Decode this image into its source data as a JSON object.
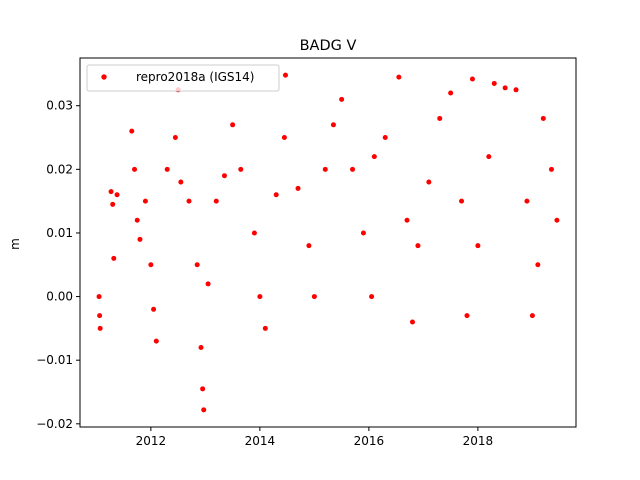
{
  "chart_data": {
    "type": "scatter",
    "title": "BADG V",
    "xlabel": "",
    "ylabel": "m",
    "xlim": [
      2010.7,
      2019.8
    ],
    "ylim": [
      -0.0205,
      0.0375
    ],
    "xticks": [
      2012,
      2014,
      2016,
      2018
    ],
    "xtick_labels": [
      "2012",
      "2014",
      "2016",
      "2018"
    ],
    "yticks": [
      -0.02,
      -0.01,
      0.0,
      0.01,
      0.02,
      0.03
    ],
    "ytick_labels": [
      "−0.02",
      "−0.01",
      "0.00",
      "0.01",
      "0.02",
      "0.03"
    ],
    "grid": false,
    "legend": {
      "position": "top-left",
      "entries": [
        "repro2018a (IGS14)"
      ]
    },
    "series": [
      {
        "name": "repro2018a (IGS14)",
        "color": "#ff0000",
        "marker": "dot",
        "description": "daily vertical position residuals",
        "sample_points": [
          [
            2011.05,
            0.0
          ],
          [
            2011.06,
            -0.003
          ],
          [
            2011.07,
            -0.005
          ],
          [
            2011.27,
            0.0165
          ],
          [
            2011.3,
            0.0145
          ],
          [
            2011.32,
            0.006
          ],
          [
            2011.38,
            0.016
          ],
          [
            2011.65,
            0.026
          ],
          [
            2011.7,
            0.02
          ],
          [
            2011.75,
            0.012
          ],
          [
            2011.8,
            0.009
          ],
          [
            2011.9,
            0.015
          ],
          [
            2012.0,
            0.005
          ],
          [
            2012.05,
            -0.002
          ],
          [
            2012.1,
            -0.007
          ],
          [
            2012.3,
            0.02
          ],
          [
            2012.45,
            0.025
          ],
          [
            2012.5,
            0.0325
          ],
          [
            2012.55,
            0.018
          ],
          [
            2012.7,
            0.015
          ],
          [
            2012.85,
            0.005
          ],
          [
            2012.92,
            -0.008
          ],
          [
            2012.95,
            -0.0145
          ],
          [
            2012.97,
            -0.0178
          ],
          [
            2013.05,
            0.002
          ],
          [
            2013.2,
            0.015
          ],
          [
            2013.35,
            0.019
          ],
          [
            2013.5,
            0.027
          ],
          [
            2013.65,
            0.02
          ],
          [
            2013.9,
            0.01
          ],
          [
            2014.0,
            0.0
          ],
          [
            2014.1,
            -0.005
          ],
          [
            2014.3,
            0.016
          ],
          [
            2014.45,
            0.025
          ],
          [
            2014.47,
            0.0348
          ],
          [
            2014.7,
            0.017
          ],
          [
            2014.9,
            0.008
          ],
          [
            2015.0,
            0.0
          ],
          [
            2015.2,
            0.02
          ],
          [
            2015.35,
            0.027
          ],
          [
            2015.5,
            0.031
          ],
          [
            2015.7,
            0.02
          ],
          [
            2015.9,
            0.01
          ],
          [
            2016.05,
            0.0
          ],
          [
            2016.1,
            0.022
          ],
          [
            2016.3,
            0.025
          ],
          [
            2016.55,
            0.0345
          ],
          [
            2016.7,
            0.012
          ],
          [
            2016.8,
            -0.004
          ],
          [
            2016.9,
            0.008
          ],
          [
            2017.1,
            0.018
          ],
          [
            2017.3,
            0.028
          ],
          [
            2017.5,
            0.032
          ],
          [
            2017.7,
            0.015
          ],
          [
            2017.8,
            -0.003
          ],
          [
            2017.9,
            0.0342
          ],
          [
            2018.0,
            0.008
          ],
          [
            2018.2,
            0.022
          ],
          [
            2018.3,
            0.0335
          ],
          [
            2018.5,
            0.0328
          ],
          [
            2018.7,
            0.0325
          ],
          [
            2018.9,
            0.015
          ],
          [
            2019.0,
            -0.003
          ],
          [
            2019.1,
            0.005
          ],
          [
            2019.2,
            0.028
          ],
          [
            2019.35,
            0.02
          ],
          [
            2019.45,
            0.012
          ]
        ]
      }
    ]
  }
}
